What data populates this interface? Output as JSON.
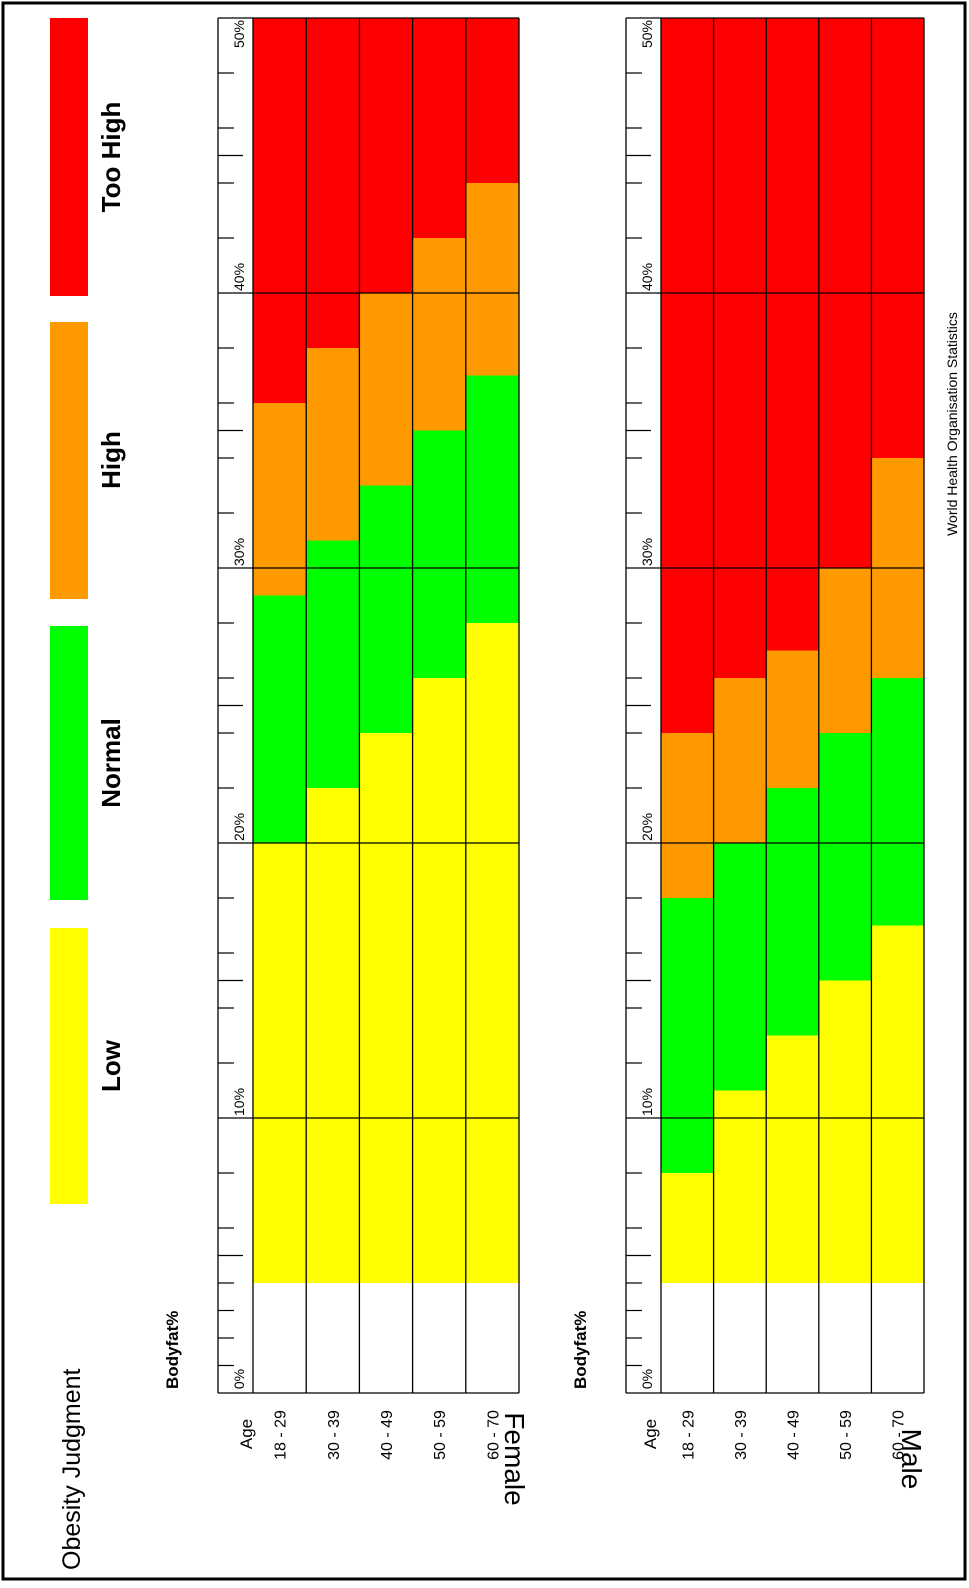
{
  "title": "Obesity Judgment",
  "source": "World Health Organisation Statistics",
  "legend": [
    {
      "label": "Low",
      "color": "#ffff00"
    },
    {
      "label": "Normal",
      "color": "#00ff00"
    },
    {
      "label": "High",
      "color": "#ff9900"
    },
    {
      "label": "Too High",
      "color": "#ff0000"
    }
  ],
  "chart_data": [
    {
      "type": "bar",
      "stacked": true,
      "orientation": "rotated 90 degrees",
      "panel_label": "Female",
      "ylabel": "Bodyfat%",
      "xlabel": "Age",
      "categories": [
        "18 - 29",
        "30 - 39",
        "40 - 49",
        "50 - 59",
        "60 - 70"
      ],
      "ylim": [
        0,
        50
      ],
      "tick_labels": [
        "0%",
        "10%",
        "20%",
        "30%",
        "40%",
        "50%"
      ],
      "grid": true,
      "series": [
        {
          "name": "Low",
          "color": "#ffff00",
          "values": [
            [
              4,
              20
            ],
            [
              4,
              22
            ],
            [
              4,
              24
            ],
            [
              4,
              26
            ],
            [
              4,
              28
            ]
          ]
        },
        {
          "name": "Normal",
          "color": "#00ff00",
          "values": [
            [
              20,
              29
            ],
            [
              22,
              31
            ],
            [
              24,
              33
            ],
            [
              26,
              35
            ],
            [
              28,
              37
            ]
          ]
        },
        {
          "name": "High",
          "color": "#ff9900",
          "values": [
            [
              29,
              36
            ],
            [
              31,
              38
            ],
            [
              33,
              40
            ],
            [
              35,
              42
            ],
            [
              37,
              44
            ]
          ]
        },
        {
          "name": "Too High",
          "color": "#ff0000",
          "values": [
            [
              36,
              50
            ],
            [
              38,
              50
            ],
            [
              40,
              50
            ],
            [
              42,
              50
            ],
            [
              44,
              50
            ]
          ]
        }
      ]
    },
    {
      "type": "bar",
      "stacked": true,
      "orientation": "rotated 90 degrees",
      "panel_label": "Male",
      "ylabel": "Bodyfat%",
      "xlabel": "Age",
      "categories": [
        "18 - 29",
        "30 - 39",
        "40 - 49",
        "50 - 59",
        "60 - 70"
      ],
      "ylim": [
        0,
        50
      ],
      "tick_labels": [
        "0%",
        "10%",
        "20%",
        "30%",
        "40%",
        "50%"
      ],
      "grid": true,
      "series": [
        {
          "name": "Low",
          "color": "#ffff00",
          "values": [
            [
              4,
              8
            ],
            [
              4,
              11
            ],
            [
              4,
              13
            ],
            [
              4,
              15
            ],
            [
              4,
              17
            ]
          ]
        },
        {
          "name": "Normal",
          "color": "#00ff00",
          "values": [
            [
              8,
              18
            ],
            [
              11,
              20
            ],
            [
              13,
              22
            ],
            [
              15,
              24
            ],
            [
              17,
              26
            ]
          ]
        },
        {
          "name": "High",
          "color": "#ff9900",
          "values": [
            [
              18,
              24
            ],
            [
              20,
              26
            ],
            [
              22,
              27
            ],
            [
              24,
              30
            ],
            [
              26,
              34
            ]
          ]
        },
        {
          "name": "Too High",
          "color": "#ff0000",
          "values": [
            [
              24,
              50
            ],
            [
              26,
              50
            ],
            [
              27,
              50
            ],
            [
              30,
              50
            ],
            [
              34,
              50
            ]
          ]
        }
      ]
    }
  ]
}
